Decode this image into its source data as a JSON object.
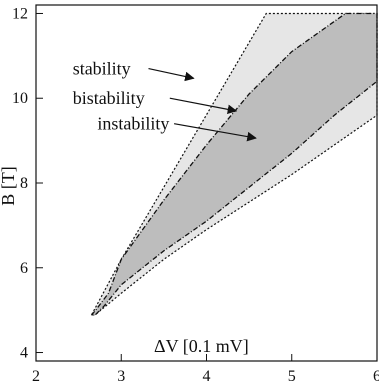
{
  "chart_data": {
    "type": "area",
    "title": "",
    "xlabel": "ΔV [0.1 mV]",
    "ylabel": "B [T]",
    "xlim": [
      2,
      6
    ],
    "ylim": [
      3.8,
      12.2
    ],
    "xticks": [
      2,
      3,
      4,
      5,
      6
    ],
    "yticks": [
      4,
      6,
      8,
      10,
      12
    ],
    "grid": false,
    "legend": "none",
    "colors": {
      "bistability_fill": "#e6e6e6",
      "instability_fill": "#bdbdbd",
      "axis": "#111111",
      "boundary": "#111111"
    },
    "regions": [
      {
        "name": "bistability",
        "outline": [
          [
            3.0,
            6.2
          ],
          [
            4.7,
            12.0
          ],
          [
            6.0,
            12.0
          ],
          [
            6.0,
            9.6
          ],
          [
            5.0,
            8.2
          ],
          [
            4.0,
            6.9
          ],
          [
            3.5,
            6.2
          ],
          [
            3.0,
            5.4
          ],
          [
            2.7,
            4.9
          ],
          [
            2.65,
            4.88
          ]
        ],
        "fill": "#e6e6e6",
        "boundary_style": "dotted"
      },
      {
        "name": "instability",
        "outline": [
          [
            2.65,
            4.88
          ],
          [
            2.7,
            5.0
          ],
          [
            2.85,
            5.4
          ],
          [
            3.0,
            6.2
          ],
          [
            3.5,
            7.6
          ],
          [
            4.0,
            8.9
          ],
          [
            4.5,
            10.1
          ],
          [
            5.0,
            11.1
          ],
          [
            5.63,
            12.0
          ],
          [
            6.0,
            12.0
          ],
          [
            6.0,
            10.4
          ],
          [
            5.5,
            9.6
          ],
          [
            5.0,
            8.7
          ],
          [
            4.5,
            7.9
          ],
          [
            4.0,
            7.1
          ],
          [
            3.5,
            6.4
          ],
          [
            3.0,
            5.6
          ],
          [
            2.8,
            5.1
          ],
          [
            2.7,
            4.9
          ]
        ],
        "fill": "#bdbdbd",
        "boundary_style": "dash-dot"
      }
    ],
    "annotations": [
      {
        "text": "stability",
        "label_at": [
          2.43,
          10.7
        ],
        "arrow_from": [
          3.32,
          10.7
        ],
        "arrow_to": [
          3.85,
          10.47
        ]
      },
      {
        "text": "bistability",
        "label_at": [
          2.43,
          10.0
        ],
        "arrow_from": [
          3.57,
          10.0
        ],
        "arrow_to": [
          4.35,
          9.7
        ]
      },
      {
        "text": "instability",
        "label_at": [
          2.72,
          9.4
        ],
        "arrow_from": [
          3.62,
          9.4
        ],
        "arrow_to": [
          4.58,
          9.06
        ]
      }
    ]
  }
}
